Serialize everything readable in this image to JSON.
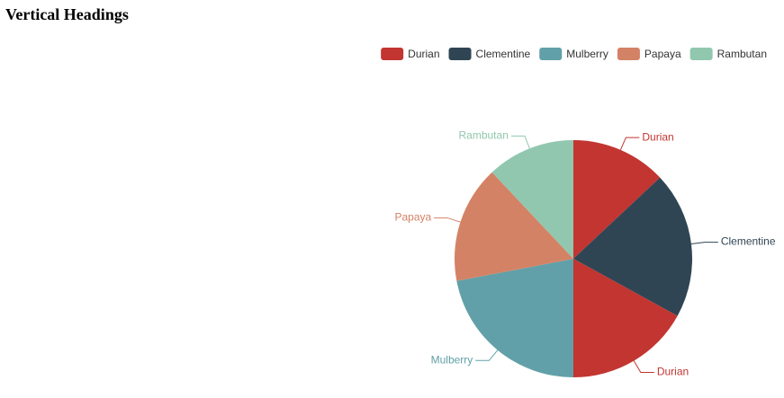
{
  "chart_data": {
    "type": "pie",
    "title": "Vertical Headings",
    "categories": [
      "Durian",
      "Clementine",
      "Durian",
      "Mulberry",
      "Papaya",
      "Rambutan"
    ],
    "values": [
      13,
      20,
      17,
      22,
      16,
      12
    ],
    "colors": [
      "#c23531",
      "#2f4554",
      "#c23531",
      "#61a0a8",
      "#d48265",
      "#91c7ae"
    ],
    "legend": [
      "Durian",
      "Clementine",
      "Mulberry",
      "Papaya",
      "Rambutan"
    ],
    "legend_colors": [
      "#c23531",
      "#2f4554",
      "#61a0a8",
      "#d48265",
      "#91c7ae"
    ],
    "legend_position": "top-right"
  }
}
